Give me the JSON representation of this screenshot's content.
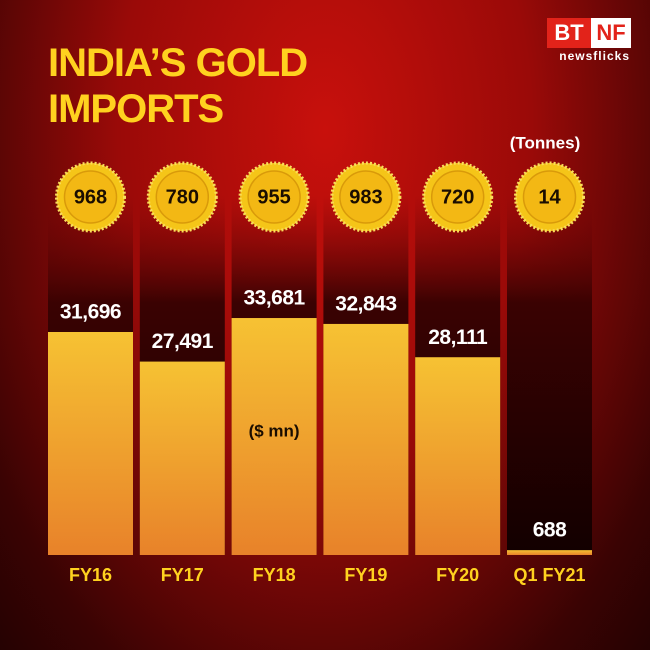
{
  "logo": {
    "left": "BT",
    "right": "NF",
    "sub": "newsflicks"
  },
  "chart_data": {
    "type": "bar",
    "title": "INDIA’S GOLD IMPORTS",
    "categories": [
      "FY16",
      "FY17",
      "FY18",
      "FY19",
      "FY20",
      "Q1 FY21"
    ],
    "values": [
      31696,
      27491,
      33681,
      32843,
      28111,
      688
    ],
    "value_labels": [
      "31,696",
      "27,491",
      "33,681",
      "32,843",
      "28,111",
      "688"
    ],
    "unit_label": "($ mn)",
    "color": "#f6c233",
    "coins": {
      "unit_label": "(Tonnes)",
      "values": [
        968,
        780,
        955,
        983,
        720,
        14
      ],
      "color": "#f5c518"
    }
  }
}
